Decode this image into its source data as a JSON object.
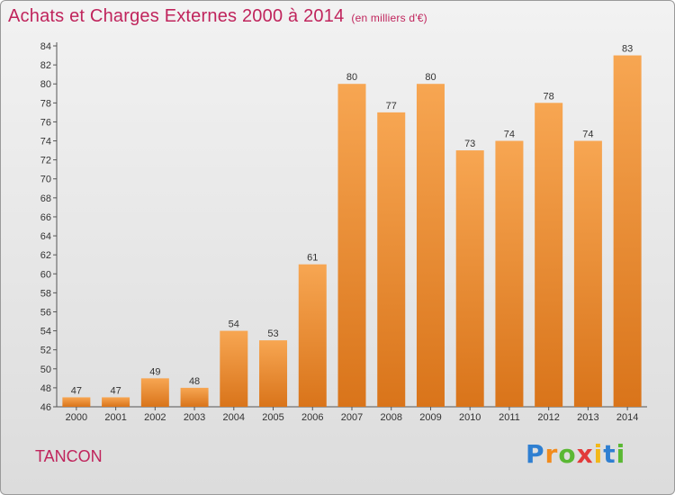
{
  "header": {
    "title": "Achats et Charges Externes 2000 à 2014",
    "subtitle": "(en milliers d'€)"
  },
  "footer": {
    "commune": "TANCON",
    "logo_text": "Proxiti"
  },
  "colors": {
    "title": "#c0245c",
    "bar_light": "#f7a652",
    "bar_dark": "#d9741a"
  },
  "chart_data": {
    "type": "bar",
    "title": "Achats et Charges Externes 2000 à 2014",
    "subtitle": "(en milliers d'€)",
    "xlabel": "",
    "ylabel": "",
    "categories": [
      "2000",
      "2001",
      "2002",
      "2003",
      "2004",
      "2005",
      "2006",
      "2007",
      "2008",
      "2009",
      "2010",
      "2011",
      "2012",
      "2013",
      "2014"
    ],
    "values": [
      47,
      47,
      49,
      48,
      54,
      53,
      61,
      80,
      77,
      80,
      73,
      74,
      78,
      74,
      83
    ],
    "ylim": [
      46,
      84
    ],
    "yticks": [
      46,
      48,
      50,
      52,
      54,
      56,
      58,
      60,
      62,
      64,
      66,
      68,
      70,
      72,
      74,
      76,
      78,
      80,
      82,
      84
    ],
    "grid": false,
    "data_labels": true
  }
}
